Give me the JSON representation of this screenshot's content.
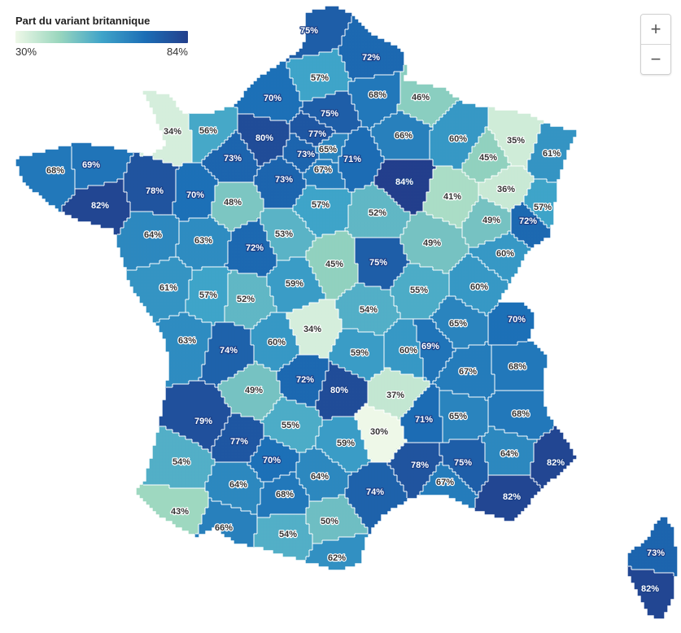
{
  "legend": {
    "title": "Part du variant britannique",
    "min_label": "30%",
    "max_label": "84%",
    "colors": [
      "#eef8e8",
      "#9bd7be",
      "#3fa4c9",
      "#1c6eb6",
      "#233f8c"
    ]
  },
  "zoom": {
    "in_label": "+",
    "out_label": "−"
  },
  "map_data": {
    "min": 30,
    "max": 84,
    "departments": [
      {
        "label": "75%",
        "value": 75
      },
      {
        "label": "72%",
        "value": 72
      },
      {
        "label": "57%",
        "value": 57
      },
      {
        "label": "68%",
        "value": 68
      },
      {
        "label": "46%",
        "value": 46
      },
      {
        "label": "70%",
        "value": 70
      },
      {
        "label": "75%",
        "value": 75
      },
      {
        "label": "34%",
        "value": 34
      },
      {
        "label": "56%",
        "value": 56
      },
      {
        "label": "80%",
        "value": 80
      },
      {
        "label": "77%",
        "value": 77
      },
      {
        "label": "65%",
        "value": 65
      },
      {
        "label": "66%",
        "value": 66
      },
      {
        "label": "60%",
        "value": 60
      },
      {
        "label": "35%",
        "value": 35
      },
      {
        "label": "45%",
        "value": 45
      },
      {
        "label": "61%",
        "value": 61
      },
      {
        "label": "68%",
        "value": 68
      },
      {
        "label": "69%",
        "value": 69
      },
      {
        "label": "73%",
        "value": 73
      },
      {
        "label": "73%",
        "value": 73
      },
      {
        "label": "67%",
        "value": 67
      },
      {
        "label": "71%",
        "value": 71
      },
      {
        "label": "73%",
        "value": 73
      },
      {
        "label": "84%",
        "value": 84
      },
      {
        "label": "41%",
        "value": 41
      },
      {
        "label": "36%",
        "value": 36
      },
      {
        "label": "82%",
        "value": 82
      },
      {
        "label": "78%",
        "value": 78
      },
      {
        "label": "70%",
        "value": 70
      },
      {
        "label": "48%",
        "value": 48
      },
      {
        "label": "57%",
        "value": 57
      },
      {
        "label": "52%",
        "value": 52
      },
      {
        "label": "57%",
        "value": 57
      },
      {
        "label": "49%",
        "value": 49
      },
      {
        "label": "72%",
        "value": 72
      },
      {
        "label": "64%",
        "value": 64
      },
      {
        "label": "63%",
        "value": 63
      },
      {
        "label": "72%",
        "value": 72
      },
      {
        "label": "53%",
        "value": 53
      },
      {
        "label": "45%",
        "value": 45
      },
      {
        "label": "75%",
        "value": 75
      },
      {
        "label": "49%",
        "value": 49
      },
      {
        "label": "60%",
        "value": 60
      },
      {
        "label": "61%",
        "value": 61
      },
      {
        "label": "57%",
        "value": 57
      },
      {
        "label": "52%",
        "value": 52
      },
      {
        "label": "59%",
        "value": 59
      },
      {
        "label": "55%",
        "value": 55
      },
      {
        "label": "60%",
        "value": 60
      },
      {
        "label": "54%",
        "value": 54
      },
      {
        "label": "63%",
        "value": 63
      },
      {
        "label": "34%",
        "value": 34
      },
      {
        "label": "65%",
        "value": 65
      },
      {
        "label": "70%",
        "value": 70
      },
      {
        "label": "74%",
        "value": 74
      },
      {
        "label": "60%",
        "value": 60
      },
      {
        "label": "59%",
        "value": 59
      },
      {
        "label": "60%",
        "value": 60
      },
      {
        "label": "69%",
        "value": 69
      },
      {
        "label": "67%",
        "value": 67
      },
      {
        "label": "68%",
        "value": 68
      },
      {
        "label": "72%",
        "value": 72
      },
      {
        "label": "49%",
        "value": 49
      },
      {
        "label": "80%",
        "value": 80
      },
      {
        "label": "37%",
        "value": 37
      },
      {
        "label": "79%",
        "value": 79
      },
      {
        "label": "71%",
        "value": 71
      },
      {
        "label": "65%",
        "value": 65
      },
      {
        "label": "68%",
        "value": 68
      },
      {
        "label": "55%",
        "value": 55
      },
      {
        "label": "77%",
        "value": 77
      },
      {
        "label": "30%",
        "value": 30
      },
      {
        "label": "59%",
        "value": 59
      },
      {
        "label": "64%",
        "value": 64
      },
      {
        "label": "82%",
        "value": 82
      },
      {
        "label": "54%",
        "value": 54
      },
      {
        "label": "70%",
        "value": 70
      },
      {
        "label": "78%",
        "value": 78
      },
      {
        "label": "75%",
        "value": 75
      },
      {
        "label": "64%",
        "value": 64
      },
      {
        "label": "64%",
        "value": 64
      },
      {
        "label": "67%",
        "value": 67
      },
      {
        "label": "68%",
        "value": 68
      },
      {
        "label": "82%",
        "value": 82
      },
      {
        "label": "43%",
        "value": 43
      },
      {
        "label": "74%",
        "value": 74
      },
      {
        "label": "66%",
        "value": 66
      },
      {
        "label": "50%",
        "value": 50
      },
      {
        "label": "54%",
        "value": 54
      },
      {
        "label": "62%",
        "value": 62
      },
      {
        "label": "73%",
        "value": 73
      },
      {
        "label": "82%",
        "value": 82
      }
    ]
  }
}
